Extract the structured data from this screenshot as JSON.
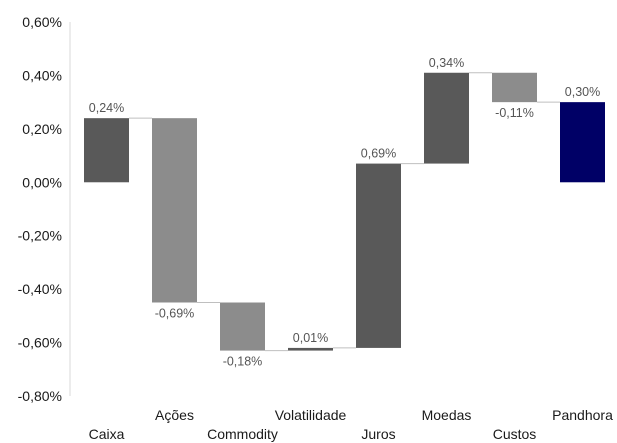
{
  "chart_data": {
    "type": "bar",
    "subtype": "waterfall",
    "title": "",
    "xlabel": "",
    "ylabel": "",
    "ylim": [
      -0.8,
      0.6
    ],
    "yticks": [
      "0,60%",
      "0,40%",
      "0,20%",
      "0,00%",
      "-0,20%",
      "-0,40%",
      "-0,60%",
      "-0,80%"
    ],
    "ytick_values": [
      0.6,
      0.4,
      0.2,
      0.0,
      -0.2,
      -0.4,
      -0.6,
      -0.8
    ],
    "grid": false,
    "legend": "none",
    "categories": [
      "Caixa",
      "Ações",
      "Commodity",
      "Volatilidade",
      "Juros",
      "Moedas",
      "Custos",
      "Pandhora"
    ],
    "values": [
      0.24,
      -0.69,
      -0.18,
      0.01,
      0.69,
      0.34,
      -0.11,
      0.3
    ],
    "value_labels": [
      "0,24%",
      "-0,69%",
      "-0,18%",
      "0,01%",
      "0,69%",
      "0,34%",
      "-0,11%",
      "0,30%"
    ],
    "bar_kinds": [
      "positive",
      "negative",
      "negative",
      "positive",
      "positive",
      "positive",
      "negative",
      "total"
    ],
    "colors": {
      "positive": "#595959",
      "negative": "#8c8c8c",
      "total": "#000066"
    }
  }
}
